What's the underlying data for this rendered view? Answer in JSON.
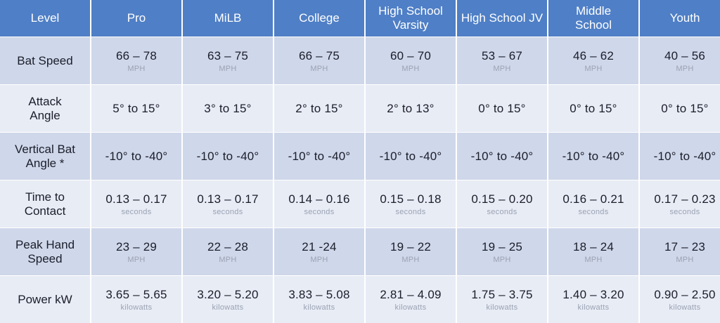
{
  "header": {
    "level": "Level",
    "cols": [
      "Pro",
      "MiLB",
      "College",
      "High School Varsity",
      "High School JV",
      "Middle School",
      "Youth"
    ]
  },
  "rows": [
    {
      "label": "Bat Speed",
      "unit": "MPH",
      "values": [
        "66 – 78",
        "63 – 75",
        "66 – 75",
        "60 – 70",
        "53 – 67",
        "46 – 62",
        "40 – 56"
      ]
    },
    {
      "label": "Attack Angle",
      "unit": "",
      "values": [
        "5° to 15°",
        "3° to 15°",
        "2° to 15°",
        "2° to 13°",
        "0° to 15°",
        "0° to 15°",
        "0° to 15°"
      ]
    },
    {
      "label": "Vertical Bat Angle *",
      "unit": "",
      "values": [
        "-10° to -40°",
        "-10° to -40°",
        "-10° to -40°",
        "-10° to -40°",
        "-10° to -40°",
        "-10° to -40°",
        "-10° to -40°"
      ]
    },
    {
      "label": "Time to Contact",
      "unit": "seconds",
      "values": [
        "0.13 – 0.17",
        "0.13 – 0.17",
        "0.14 – 0.16",
        "0.15 – 0.18",
        "0.15 – 0.20",
        "0.16 – 0.21",
        "0.17 – 0.23"
      ]
    },
    {
      "label": "Peak Hand Speed",
      "unit": "MPH",
      "values": [
        "23 – 29",
        "22 – 28",
        "21 -24",
        "19 – 22",
        "19 – 25",
        "18 – 24",
        "17 – 23"
      ]
    },
    {
      "label": "Power kW",
      "unit": "kilowatts",
      "values": [
        "3.65 – 5.65",
        "3.20 – 5.20",
        "3.83 – 5.08",
        "2.81 – 4.09",
        "1.75 – 3.75",
        "1.40 – 3.20",
        "0.90 – 2.50"
      ]
    }
  ],
  "colors": {
    "header": "#4f7fc6",
    "row_dark": "#cfd7ea",
    "row_light": "#e8ecf5"
  }
}
